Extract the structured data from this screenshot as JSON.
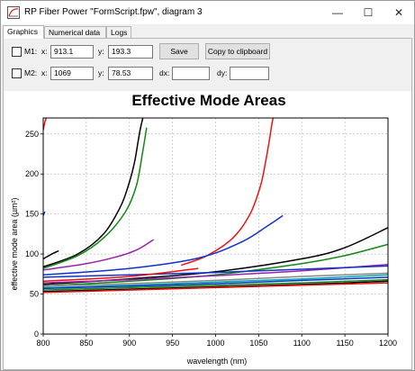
{
  "window": {
    "title": "RP Fiber Power \"FormScript.fpw\", diagram 3",
    "controls": {
      "minimize": "—",
      "maximize": "☐",
      "close": "✕"
    }
  },
  "tabs": [
    {
      "label": "Graphics",
      "active": true
    },
    {
      "label": "Numerical data",
      "active": false
    },
    {
      "label": "Logs",
      "active": false
    }
  ],
  "markers": {
    "m1": {
      "label": "M1:",
      "x_label": "x:",
      "x_value": "913.1",
      "y_label": "y:",
      "y_value": "193.3"
    },
    "m2": {
      "label": "M2:",
      "x_label": "x:",
      "x_value": "1069",
      "y_label": "y:",
      "y_value": "78.53",
      "dx_label": "dx:",
      "dx_value": "",
      "dy_label": "dy:",
      "dy_value": ""
    }
  },
  "buttons": {
    "save": "Save",
    "copy": "Copy to clipboard"
  },
  "chart_data": {
    "type": "line",
    "title": "Effective Mode Areas",
    "xlabel": "wavelength (nm)",
    "ylabel": "effective mode area (µm²)",
    "xlim": [
      800,
      1200
    ],
    "ylim": [
      0,
      270
    ],
    "xticks": [
      800,
      850,
      900,
      950,
      1000,
      1050,
      1100,
      1150,
      1200
    ],
    "yticks": [
      0,
      50,
      100,
      150,
      200,
      250
    ],
    "grid": true,
    "series": [
      {
        "color": "#ee1111",
        "x": [
          800,
          802,
          804
        ],
        "y": [
          255,
          265,
          272
        ]
      },
      {
        "color": "#ee1111",
        "x": [
          960,
          990,
          1020,
          1040,
          1052,
          1058,
          1062,
          1065,
          1067
        ],
        "y": [
          86,
          98,
          120,
          150,
          185,
          215,
          240,
          260,
          272
        ]
      },
      {
        "color": "#000000",
        "x": [
          800,
          810,
          818
        ],
        "y": [
          94,
          100,
          104
        ]
      },
      {
        "color": "#000000",
        "x": [
          800,
          840,
          870,
          890,
          900,
          906,
          910,
          913,
          916
        ],
        "y": [
          84,
          100,
          125,
          160,
          190,
          215,
          240,
          258,
          272
        ]
      },
      {
        "color": "#000000",
        "x": [
          800,
          900,
          1000,
          1100,
          1150,
          1200
        ],
        "y": [
          62,
          69,
          78,
          94,
          108,
          133
        ]
      },
      {
        "color": "#118811",
        "x": [
          800,
          840,
          870,
          895,
          908,
          915,
          920
        ],
        "y": [
          82,
          98,
          120,
          152,
          185,
          225,
          258
        ]
      },
      {
        "color": "#118811",
        "x": [
          800,
          900,
          1000,
          1100,
          1150,
          1200
        ],
        "y": [
          60,
          66,
          74,
          88,
          98,
          112
        ]
      },
      {
        "color": "#9922aa",
        "x": [
          800,
          850,
          890,
          910,
          928
        ],
        "y": [
          80,
          88,
          98,
          106,
          118
        ]
      },
      {
        "color": "#9922aa",
        "x": [
          800,
          900,
          1000,
          1100,
          1200
        ],
        "y": [
          64,
          68,
          73,
          79,
          87
        ]
      },
      {
        "color": "#1133cc",
        "x": [
          800,
          802
        ],
        "y": [
          148,
          153
        ]
      },
      {
        "color": "#1133cc",
        "x": [
          800,
          900,
          980,
          1030,
          1060,
          1078
        ],
        "y": [
          74,
          82,
          95,
          115,
          135,
          148
        ]
      },
      {
        "color": "#1133cc",
        "x": [
          800,
          900,
          1000,
          1100,
          1200
        ],
        "y": [
          71,
          74,
          77,
          81,
          85
        ]
      },
      {
        "color": "#ee1111",
        "x": [
          800,
          900,
          980
        ],
        "y": [
          66,
          72,
          82
        ]
      },
      {
        "color": "#888888",
        "x": [
          800,
          900,
          1000,
          1100,
          1200
        ],
        "y": [
          60,
          63,
          67,
          72,
          76
        ]
      },
      {
        "color": "#00aaaa",
        "x": [
          800,
          900,
          1000,
          1100,
          1200
        ],
        "y": [
          58,
          61,
          65,
          69,
          74
        ]
      },
      {
        "color": "#1133cc",
        "x": [
          800,
          900,
          1000,
          1100,
          1200
        ],
        "y": [
          57,
          60,
          63,
          67,
          71
        ]
      },
      {
        "color": "#118811",
        "x": [
          800,
          900,
          1000,
          1100,
          1200
        ],
        "y": [
          55,
          58,
          61,
          64,
          68
        ]
      },
      {
        "color": "#000000",
        "x": [
          800,
          900,
          1000,
          1100,
          1200
        ],
        "y": [
          53,
          56,
          59,
          62,
          66
        ]
      },
      {
        "color": "#ee1111",
        "x": [
          800,
          900,
          1000,
          1100,
          1200
        ],
        "y": [
          52,
          55,
          58,
          61,
          64
        ]
      }
    ]
  }
}
